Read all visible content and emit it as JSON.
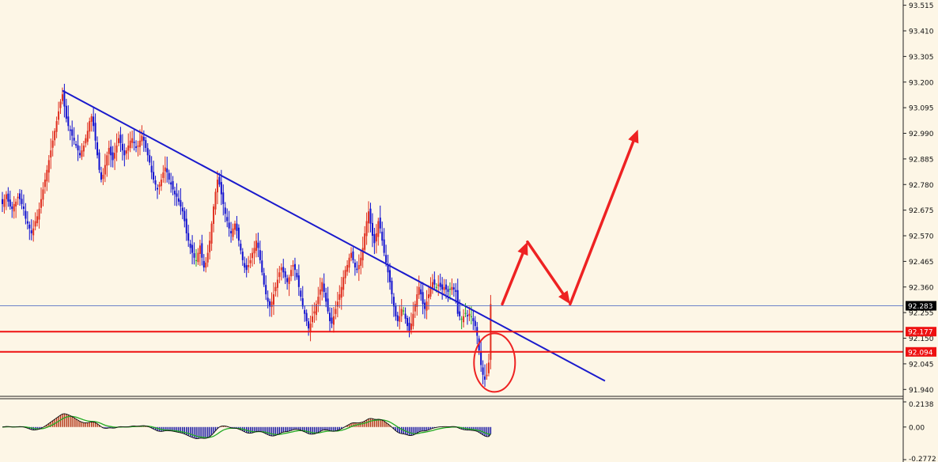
{
  "colors": {
    "background": "#fdf6e6",
    "bull": "#e03020",
    "bear": "#1010d0",
    "neutral": "#22a022",
    "trendline": "#1a1acc",
    "support": "#ee1111",
    "arrow": "#ee2222",
    "current_line": "#3b5bbf",
    "macd_pos": "#b03010",
    "macd_neg": "#1010a0",
    "signal": "#22aa22",
    "macd_line": "#111111"
  },
  "chart_data": [
    {
      "type": "candlestick",
      "title": "",
      "xlabel": "",
      "ylabel": "",
      "ylim": [
        91.915,
        93.53
      ],
      "y_ticks": [
        "93.515",
        "93.410",
        "93.305",
        "93.200",
        "93.095",
        "92.990",
        "92.885",
        "92.780",
        "92.675",
        "92.570",
        "92.465",
        "92.360",
        "92.255",
        "92.150",
        "92.045",
        "91.940"
      ],
      "grid": false,
      "current_price": "92.283",
      "horizontal_levels": [
        {
          "label": "92.177",
          "value": 92.177,
          "color": "support"
        },
        {
          "label": "92.094",
          "value": 92.094,
          "color": "support"
        }
      ],
      "trendline": {
        "from": {
          "bar": 31,
          "price": 93.165
        },
        "to": {
          "bar": 311,
          "price": 91.975
        }
      },
      "annotations": [
        {
          "kind": "ellipse",
          "center_bar": 254,
          "center_price": 92.05,
          "color": "arrow"
        },
        {
          "kind": "arrow-path",
          "points": [
            {
              "bar": 258,
              "price": 92.29
            },
            {
              "bar": 271,
              "price": 92.545
            },
            {
              "bar": 293,
              "price": 92.29
            },
            {
              "bar": 328,
              "price": 93.005
            }
          ],
          "color": "arrow"
        }
      ],
      "close_series": [
        92.7,
        92.72,
        92.74,
        92.71,
        92.69,
        92.68,
        92.7,
        92.71,
        92.73,
        92.72,
        92.7,
        92.68,
        92.64,
        92.62,
        92.6,
        92.58,
        92.6,
        92.63,
        92.65,
        92.68,
        92.72,
        92.76,
        92.8,
        92.84,
        92.88,
        92.92,
        92.96,
        93.0,
        93.04,
        93.08,
        93.12,
        93.15,
        93.1,
        93.05,
        93.02,
        93.0,
        92.98,
        92.96,
        92.94,
        92.92,
        92.9,
        92.92,
        92.94,
        92.97,
        93.0,
        93.04,
        93.06,
        93.02,
        92.96,
        92.9,
        92.84,
        92.8,
        92.82,
        92.86,
        92.9,
        92.93,
        92.9,
        92.88,
        92.91,
        92.94,
        92.97,
        92.95,
        92.92,
        92.9,
        92.92,
        92.94,
        92.96,
        92.97,
        92.95,
        92.93,
        92.94,
        92.96,
        92.98,
        92.96,
        92.93,
        92.9,
        92.87,
        92.83,
        92.8,
        92.78,
        92.76,
        92.78,
        92.8,
        92.83,
        92.85,
        92.83,
        92.8,
        92.78,
        92.76,
        92.74,
        92.73,
        92.71,
        92.69,
        92.67,
        92.63,
        92.58,
        92.55,
        92.52,
        92.5,
        92.48,
        92.47,
        92.5,
        92.53,
        92.48,
        92.44,
        92.46,
        92.5,
        92.55,
        92.62,
        92.69,
        92.75,
        92.8,
        92.78,
        92.74,
        92.7,
        92.66,
        92.63,
        92.6,
        92.58,
        92.6,
        92.62,
        92.59,
        92.55,
        92.51,
        92.47,
        92.44,
        92.43,
        92.45,
        92.47,
        92.5,
        92.52,
        92.55,
        92.52,
        92.47,
        92.42,
        92.37,
        92.33,
        92.3,
        92.28,
        92.3,
        92.33,
        92.36,
        92.39,
        92.42,
        92.44,
        92.42,
        92.4,
        92.38,
        92.4,
        92.43,
        92.45,
        92.43,
        92.4,
        92.36,
        92.32,
        92.28,
        92.25,
        92.22,
        92.19,
        92.21,
        92.24,
        92.26,
        92.29,
        92.32,
        92.35,
        92.38,
        92.34,
        92.3,
        92.26,
        92.22,
        92.21,
        92.24,
        92.27,
        92.3,
        92.33,
        92.36,
        92.4,
        92.43,
        92.45,
        92.48,
        92.5,
        92.47,
        92.44,
        92.43,
        92.45,
        92.48,
        92.52,
        92.58,
        92.63,
        92.67,
        92.62,
        92.57,
        92.54,
        92.58,
        92.63,
        92.6,
        92.55,
        92.5,
        92.46,
        92.42,
        92.38,
        92.33,
        92.28,
        92.24,
        92.22,
        92.24,
        92.27,
        92.26,
        92.23,
        92.2,
        92.18,
        92.21,
        92.25,
        92.29,
        92.33,
        92.36,
        92.33,
        92.29,
        92.27,
        92.3,
        92.33,
        92.36,
        92.38,
        92.37,
        92.36,
        92.37,
        92.36,
        92.35,
        92.36,
        92.35,
        92.34,
        92.35,
        92.36,
        92.35,
        92.34,
        92.25,
        92.24,
        92.23,
        92.24,
        92.25,
        92.24,
        92.25,
        92.24,
        92.22,
        92.2,
        92.16,
        92.1,
        92.04,
        92.0,
        91.98,
        92.0,
        92.05,
        92.29
      ],
      "subwindow": {
        "type": "macd",
        "ylim": [
          -0.2772,
          0.2138
        ],
        "y_ticks": [
          "0.2138",
          "0.00",
          "-0.2772"
        ]
      }
    }
  ]
}
